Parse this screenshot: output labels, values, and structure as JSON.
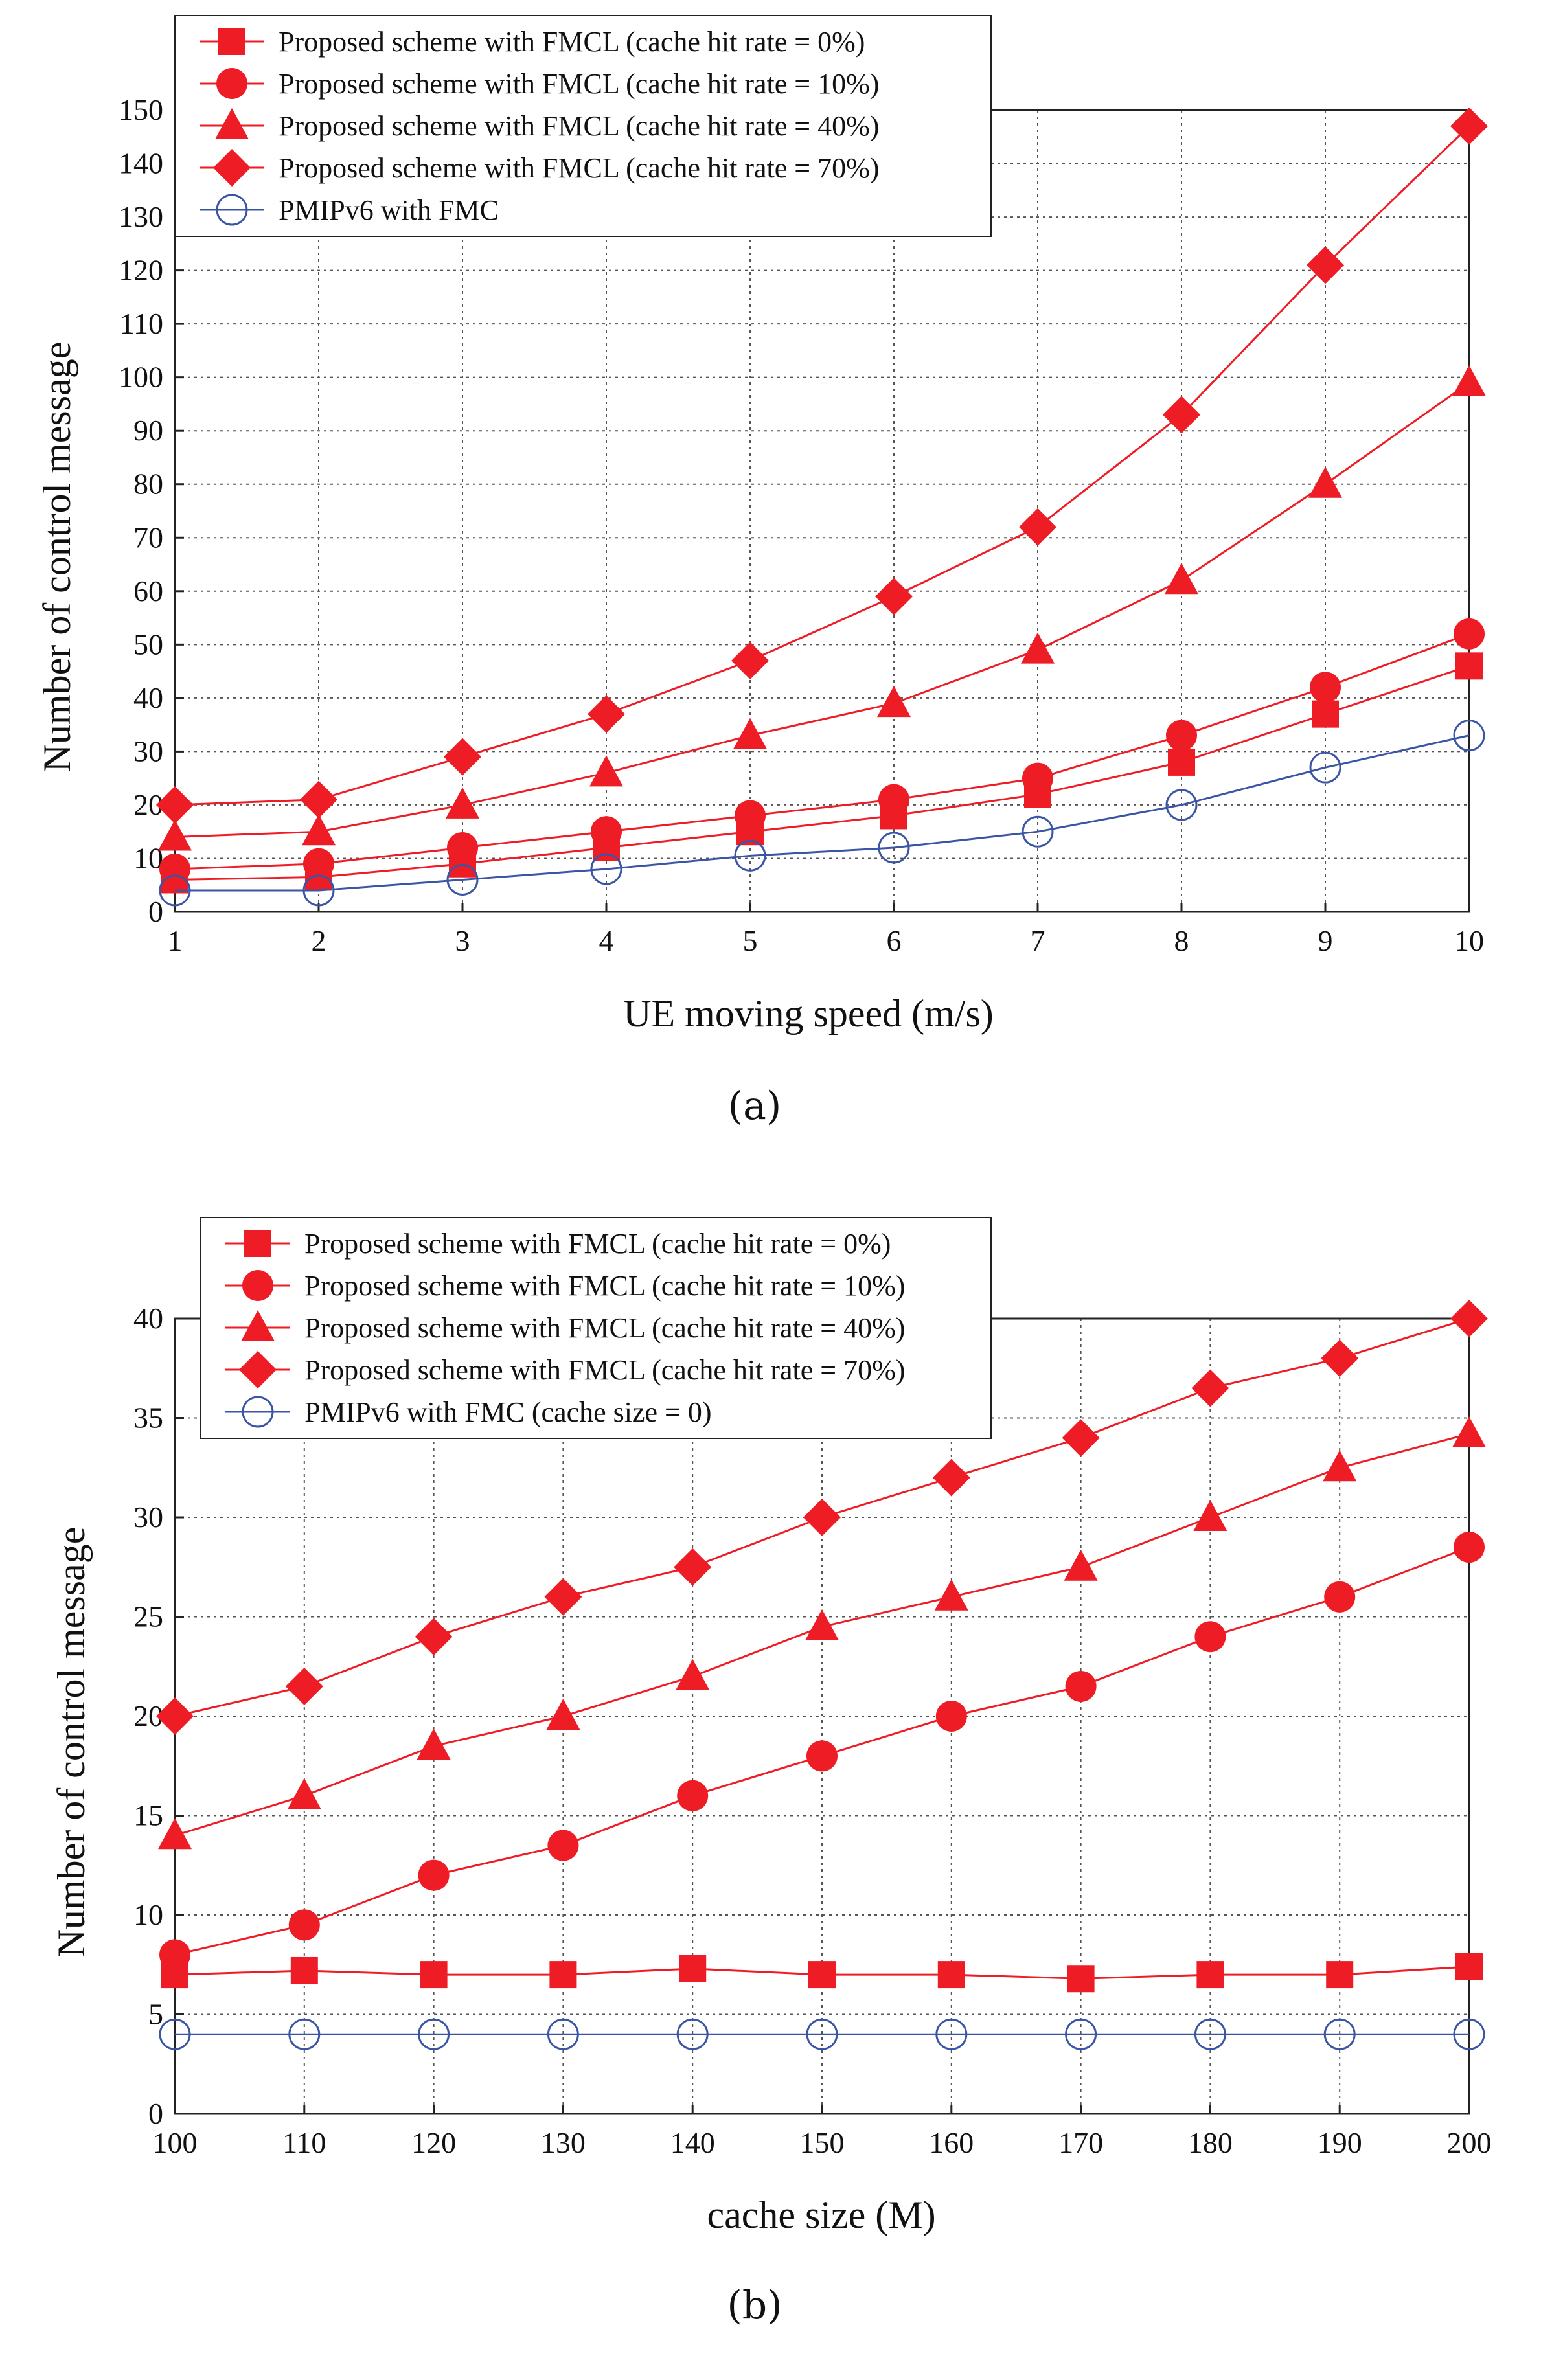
{
  "chart_data": [
    {
      "type": "line",
      "caption": "(a)",
      "xlabel": "UE moving speed (m/s)",
      "ylabel": "Number of control message",
      "xlim": [
        1,
        10
      ],
      "ylim": [
        0,
        150
      ],
      "x_ticks": [
        1,
        2,
        3,
        4,
        5,
        6,
        7,
        8,
        9,
        10
      ],
      "y_ticks": [
        0,
        10,
        20,
        30,
        40,
        50,
        60,
        70,
        80,
        90,
        100,
        110,
        120,
        130,
        140,
        150
      ],
      "grid": true,
      "legend_position": "top-left",
      "x": [
        1,
        2,
        3,
        4,
        5,
        6,
        7,
        8,
        9,
        10
      ],
      "series": [
        {
          "name": "Proposed scheme with FMCL (cache hit rate = 0%)",
          "marker": "square",
          "color": "#ee1c25",
          "values": [
            6,
            6.5,
            9,
            12,
            15,
            18,
            22,
            28,
            37,
            46
          ]
        },
        {
          "name": "Proposed scheme with FMCL (cache hit rate = 10%)",
          "marker": "circle",
          "color": "#ee1c25",
          "values": [
            8,
            9,
            12,
            15,
            18,
            21,
            25,
            33,
            42,
            52
          ]
        },
        {
          "name": "Proposed scheme with FMCL (cache hit rate = 40%)",
          "marker": "triangle",
          "color": "#ee1c25",
          "values": [
            14,
            15,
            20,
            26,
            33,
            39,
            49,
            62,
            80,
            99
          ]
        },
        {
          "name": "Proposed scheme with FMCL (cache hit rate = 70%)",
          "marker": "diamond",
          "color": "#ee1c25",
          "values": [
            20,
            21,
            29,
            37,
            47,
            59,
            72,
            93,
            121,
            147
          ]
        },
        {
          "name": "PMIPv6 with FMC",
          "marker": "open-circle",
          "color": "#3a55a5",
          "values": [
            4,
            4,
            6,
            8,
            10.5,
            12,
            15,
            20,
            27,
            33
          ]
        }
      ]
    },
    {
      "type": "line",
      "caption": "(b)",
      "xlabel": "cache size (M)",
      "ylabel": "Number of control message",
      "xlim": [
        100,
        200
      ],
      "ylim": [
        0,
        40
      ],
      "x_ticks": [
        100,
        110,
        120,
        130,
        140,
        150,
        160,
        170,
        180,
        190,
        200
      ],
      "y_ticks": [
        0,
        5,
        10,
        15,
        20,
        25,
        30,
        35,
        40
      ],
      "grid": true,
      "legend_position": "top-left",
      "x": [
        100,
        110,
        120,
        130,
        140,
        150,
        160,
        170,
        180,
        190,
        200
      ],
      "series": [
        {
          "name": "Proposed scheme with FMCL (cache hit rate = 0%)",
          "marker": "square",
          "color": "#ee1c25",
          "values": [
            7,
            7.2,
            7,
            7,
            7.3,
            7,
            7,
            6.8,
            7,
            7,
            7.4
          ]
        },
        {
          "name": "Proposed scheme with FMCL (cache hit rate = 10%)",
          "marker": "circle",
          "color": "#ee1c25",
          "values": [
            8,
            9.5,
            12,
            13.5,
            16,
            18,
            20,
            21.5,
            24,
            26,
            28.5
          ]
        },
        {
          "name": "Proposed scheme with FMCL (cache hit rate = 40%)",
          "marker": "triangle",
          "color": "#ee1c25",
          "values": [
            14,
            16,
            18.5,
            20,
            22,
            24.5,
            26,
            27.5,
            30,
            32.5,
            34.2
          ]
        },
        {
          "name": "Proposed scheme with FMCL (cache hit rate = 70%)",
          "marker": "diamond",
          "color": "#ee1c25",
          "values": [
            20,
            21.5,
            24,
            26,
            27.5,
            30,
            32,
            34,
            36.5,
            38,
            40
          ]
        },
        {
          "name": "PMIPv6 with FMC (cache size = 0)",
          "marker": "open-circle",
          "color": "#3a55a5",
          "values": [
            4,
            4,
            4,
            4,
            4,
            4,
            4,
            4,
            4,
            4,
            4
          ]
        }
      ]
    }
  ]
}
